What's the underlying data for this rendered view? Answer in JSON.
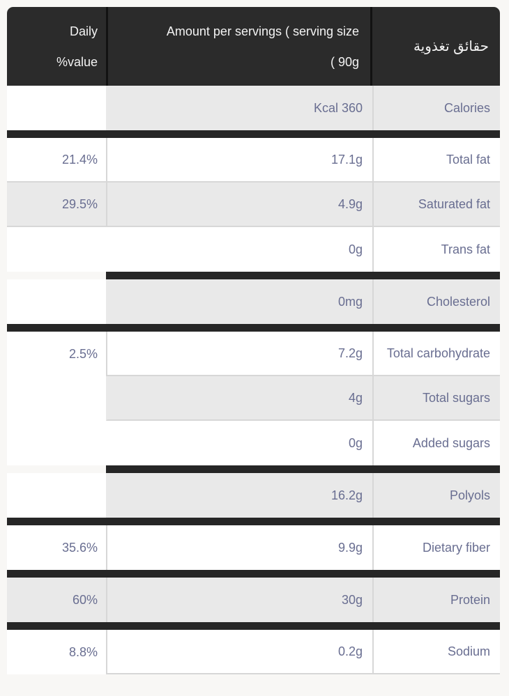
{
  "header": {
    "title_ar": "حقائق تغذوية",
    "amount_line1": "Amount per servings ( serving size",
    "amount_line2": "( 90g",
    "daily_line1": "Daily",
    "daily_line2": "%value"
  },
  "rows": [
    {
      "name": "Calories",
      "amount": "Kcal 360",
      "daily": "",
      "shade": "gray",
      "bar_after": "full",
      "daily_border": false
    },
    {
      "name": "Total fat",
      "amount": "17.1g",
      "daily": "21.4%",
      "shade": "white",
      "bar_after": "",
      "daily_border": true
    },
    {
      "name": "Saturated fat",
      "amount": "4.9g",
      "daily": "29.5%",
      "shade": "gray",
      "bar_after": "",
      "daily_border": true
    },
    {
      "name": "Trans fat",
      "amount": "0g",
      "daily": "",
      "shade": "white",
      "bar_after": "partial",
      "daily_border": false
    },
    {
      "name": "Cholesterol",
      "amount": "0mg",
      "daily": "",
      "shade": "gray",
      "bar_after": "full",
      "daily_border": false
    },
    {
      "name": "Total carbohydrate",
      "amount": "7.2g",
      "daily": "2.5%",
      "shade": "white",
      "bar_after": "",
      "daily_border": false
    },
    {
      "name": "Total sugars",
      "amount": "4g",
      "daily": "",
      "shade": "gray",
      "bar_after": "",
      "daily_border": false
    },
    {
      "name": "Added sugars",
      "amount": "0g",
      "daily": "",
      "shade": "white",
      "bar_after": "partial",
      "daily_border": false
    },
    {
      "name": "Polyols",
      "amount": "16.2g",
      "daily": "",
      "shade": "gray",
      "bar_after": "full",
      "daily_border": false
    },
    {
      "name": "Dietary fiber",
      "amount": "9.9g",
      "daily": "35.6%",
      "shade": "white",
      "bar_after": "full",
      "daily_border": false
    },
    {
      "name": "Protein",
      "amount": "30g",
      "daily": "60%",
      "shade": "gray",
      "bar_after": "full",
      "daily_border": false
    },
    {
      "name": "Sodium",
      "amount": "0.2g",
      "daily": "8.8%",
      "shade": "white",
      "bar_after": "",
      "daily_border": false
    }
  ],
  "colors": {
    "header_bg": "#2b2b2b",
    "header_text": "#f3f3f3",
    "divider_bar": "#262626",
    "row_alt_bg": "#e9e9e9",
    "row_bg": "#ffffff",
    "cell_border": "#d7d7d7",
    "text": "#696e91",
    "page_bg": "#f8f7f5"
  }
}
